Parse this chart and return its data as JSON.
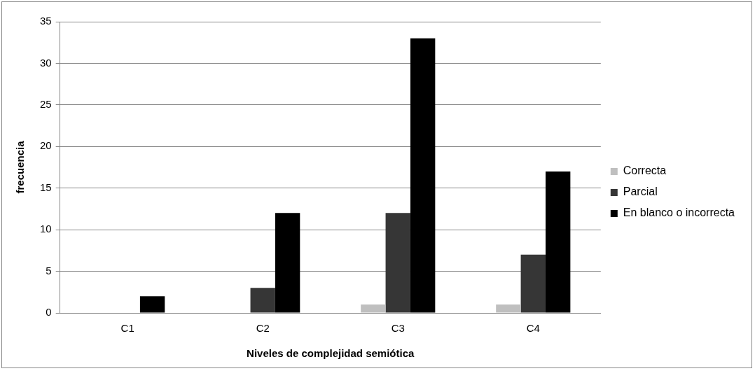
{
  "chart_data": {
    "type": "bar",
    "xlabel": "Niveles de complejidad semiótica",
    "ylabel": "frecuencia",
    "categories": [
      "C1",
      "C2",
      "C3",
      "C4"
    ],
    "series": [
      {
        "name": "Correcta",
        "color": "#bfbfbf",
        "values": [
          0,
          0,
          1,
          1
        ]
      },
      {
        "name": "Parcial",
        "color": "#363636",
        "values": [
          0,
          3,
          12,
          7
        ]
      },
      {
        "name": "En blanco o incorrecta",
        "color": "#000000",
        "values": [
          2,
          12,
          33,
          17
        ]
      }
    ],
    "ylim": [
      0,
      35
    ],
    "yticks": [
      0,
      5,
      10,
      15,
      20,
      25,
      30,
      35
    ],
    "grid": "y",
    "legend": "right"
  }
}
